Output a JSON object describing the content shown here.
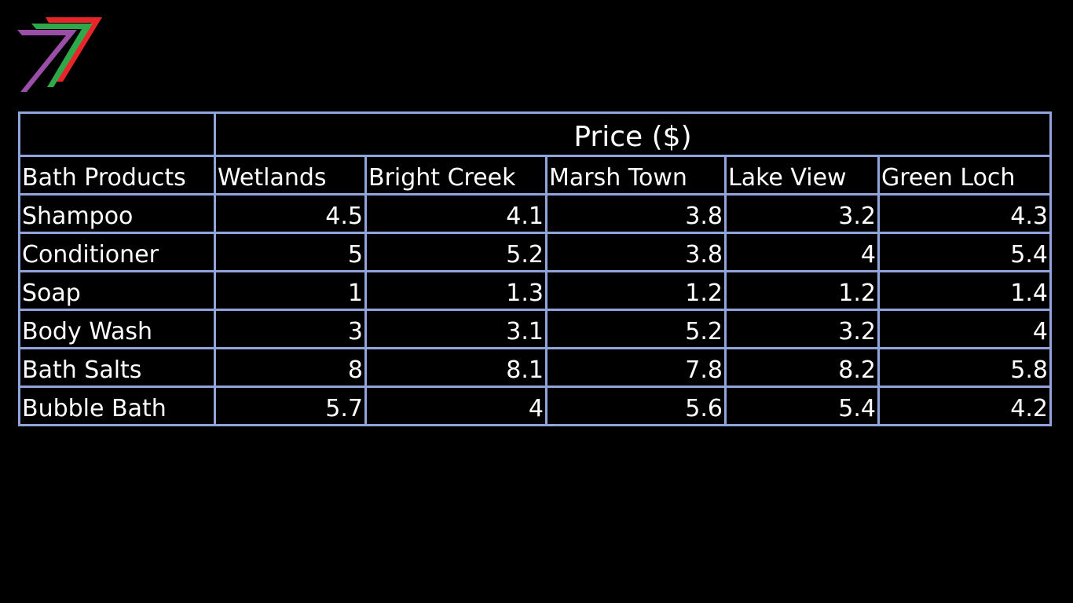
{
  "table": {
    "group_header": "Price ($)",
    "columns": [
      "Bath Products",
      "Wetlands",
      "Bright Creek",
      "Marsh Town",
      "Lake View",
      "Green Loch"
    ],
    "rows": [
      [
        "Shampoo",
        4.5,
        4.1,
        3.8,
        3.2,
        4.3
      ],
      [
        "Conditioner",
        5,
        5.2,
        3.8,
        4,
        5.4
      ],
      [
        "Soap",
        1,
        1.3,
        1.2,
        1.2,
        1.4
      ],
      [
        "Body Wash",
        3,
        3.1,
        5.2,
        3.2,
        4
      ],
      [
        "Bath Salts",
        8,
        8.1,
        7.8,
        8.2,
        5.8
      ],
      [
        "Bubble Bath",
        5.7,
        4,
        5.6,
        5.4,
        4.2
      ]
    ]
  }
}
